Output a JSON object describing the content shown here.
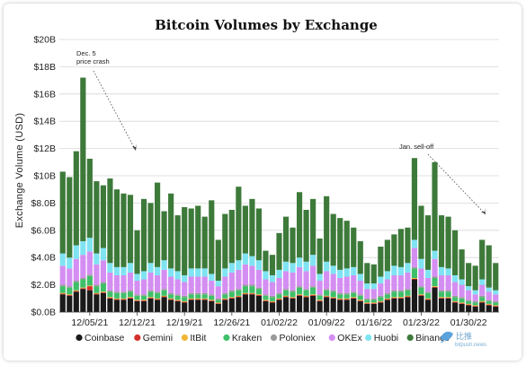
{
  "chart_data": {
    "type": "bar",
    "stacked": true,
    "title": "Bitcoin Volumes by Exchange",
    "xlabel": "",
    "ylabel": "Exchange Volume (USD)",
    "ylim": [
      0,
      20
    ],
    "y_ticks": [
      0,
      2,
      4,
      6,
      8,
      10,
      12,
      14,
      16,
      18,
      20
    ],
    "y_tick_labels": [
      "$0.0B",
      "$2.0B",
      "$4.0B",
      "$6.0B",
      "$8.0B",
      "$10B",
      "$12B",
      "$14B",
      "$16B",
      "$18B",
      "$20B"
    ],
    "x_tick_labels": [
      {
        "label": "12/05/21",
        "index": 4
      },
      {
        "label": "12/12/21",
        "index": 11
      },
      {
        "label": "12/19/21",
        "index": 18
      },
      {
        "label": "12/26/21",
        "index": 25
      },
      {
        "label": "01/02/22",
        "index": 32
      },
      {
        "label": "01/09/22",
        "index": 39
      },
      {
        "label": "01/16/22",
        "index": 46
      },
      {
        "label": "01/23/22",
        "index": 53
      },
      {
        "label": "01/30/22",
        "index": 60
      }
    ],
    "grid": true,
    "legend_position": "bottom",
    "series": [
      {
        "name": "Coinbase",
        "color": "#1a1a1a",
        "values": [
          1.3,
          1.2,
          1.5,
          1.7,
          1.6,
          1.3,
          1.4,
          1.0,
          0.9,
          0.9,
          1.0,
          0.8,
          0.8,
          1.0,
          0.9,
          1.1,
          0.9,
          0.8,
          0.7,
          0.9,
          0.9,
          0.9,
          0.8,
          0.6,
          0.9,
          1.0,
          1.1,
          1.3,
          1.3,
          1.2,
          0.8,
          0.7,
          0.9,
          1.1,
          1.0,
          1.2,
          1.1,
          1.2,
          0.8,
          1.1,
          1.0,
          0.9,
          0.9,
          1.0,
          0.8,
          0.6,
          0.6,
          0.7,
          0.9,
          1.0,
          1.0,
          1.1,
          2.4,
          1.2,
          0.9,
          1.8,
          1.0,
          1.0,
          0.7,
          0.6,
          0.5,
          0.4,
          0.7,
          0.5,
          0.4
        ]
      },
      {
        "name": "Gemini",
        "color": "#d4302b",
        "values": [
          0.05,
          0.05,
          0.05,
          0.05,
          0.3,
          0.05,
          0.05,
          0.05,
          0.05,
          0.05,
          0.05,
          0.05,
          0.05,
          0.05,
          0.05,
          0.05,
          0.05,
          0.05,
          0.05,
          0.05,
          0.05,
          0.05,
          0.05,
          0.05,
          0.05,
          0.05,
          0.05,
          0.05,
          0.05,
          0.05,
          0.05,
          0.05,
          0.05,
          0.05,
          0.05,
          0.05,
          0.05,
          0.05,
          0.05,
          0.05,
          0.05,
          0.05,
          0.05,
          0.05,
          0.05,
          0.05,
          0.05,
          0.05,
          0.05,
          0.05,
          0.05,
          0.05,
          0.05,
          0.05,
          0.05,
          0.05,
          0.05,
          0.05,
          0.05,
          0.05,
          0.05,
          0.05,
          0.05,
          0.05,
          0.05
        ]
      },
      {
        "name": "ItBit",
        "color": "#f2b632",
        "values": [
          0.05,
          0.05,
          0.05,
          0.05,
          0.05,
          0.05,
          0.05,
          0.05,
          0.05,
          0.05,
          0.05,
          0.05,
          0.05,
          0.05,
          0.05,
          0.05,
          0.05,
          0.05,
          0.05,
          0.05,
          0.05,
          0.05,
          0.05,
          0.05,
          0.05,
          0.05,
          0.05,
          0.05,
          0.05,
          0.05,
          0.05,
          0.05,
          0.05,
          0.05,
          0.05,
          0.05,
          0.05,
          0.05,
          0.05,
          0.05,
          0.05,
          0.05,
          0.05,
          0.05,
          0.05,
          0.05,
          0.05,
          0.05,
          0.05,
          0.05,
          0.05,
          0.05,
          0.05,
          0.05,
          0.05,
          0.05,
          0.05,
          0.05,
          0.05,
          0.05,
          0.05,
          0.05,
          0.05,
          0.05,
          0.05
        ]
      },
      {
        "name": "Kraken",
        "color": "#3fbf6a",
        "values": [
          0.5,
          0.5,
          0.6,
          0.6,
          0.7,
          0.5,
          0.6,
          0.4,
          0.4,
          0.4,
          0.4,
          0.3,
          0.3,
          0.4,
          0.4,
          0.4,
          0.3,
          0.3,
          0.3,
          0.3,
          0.3,
          0.3,
          0.3,
          0.2,
          0.3,
          0.4,
          0.4,
          0.5,
          0.5,
          0.4,
          0.3,
          0.3,
          0.3,
          0.4,
          0.4,
          0.5,
          0.4,
          0.5,
          0.3,
          0.4,
          0.4,
          0.3,
          0.3,
          0.3,
          0.3,
          0.2,
          0.2,
          0.3,
          0.3,
          0.4,
          0.4,
          0.4,
          0.7,
          0.5,
          0.4,
          0.6,
          0.4,
          0.4,
          0.3,
          0.3,
          0.2,
          0.2,
          0.3,
          0.2,
          0.2
        ]
      },
      {
        "name": "Poloniex",
        "color": "#9a9a9a",
        "values": [
          0.1,
          0.1,
          0.1,
          0.1,
          0.1,
          0.1,
          0.1,
          0.1,
          0.1,
          0.1,
          0.1,
          0.1,
          0.1,
          0.1,
          0.1,
          0.1,
          0.1,
          0.1,
          0.1,
          0.1,
          0.1,
          0.1,
          0.1,
          0.1,
          0.1,
          0.1,
          0.1,
          0.1,
          0.1,
          0.1,
          0.1,
          0.1,
          0.1,
          0.1,
          0.1,
          0.1,
          0.1,
          0.1,
          0.1,
          0.1,
          0.1,
          0.1,
          0.1,
          0.1,
          0.1,
          0.1,
          0.1,
          0.1,
          0.1,
          0.1,
          0.1,
          0.1,
          0.1,
          0.1,
          0.1,
          0.1,
          0.1,
          0.1,
          0.1,
          0.1,
          0.1,
          0.1,
          0.1,
          0.1,
          0.1
        ]
      },
      {
        "name": "OKEx",
        "color": "#d48ef2",
        "values": [
          1.4,
          1.3,
          1.6,
          1.7,
          1.7,
          1.5,
          1.6,
          1.3,
          1.2,
          1.2,
          1.3,
          1.0,
          1.1,
          1.3,
          1.2,
          1.4,
          1.2,
          1.1,
          1.0,
          1.2,
          1.2,
          1.2,
          1.0,
          0.9,
          1.2,
          1.3,
          1.4,
          1.5,
          1.4,
          1.3,
          1.1,
          1.0,
          1.1,
          1.3,
          1.3,
          1.4,
          1.3,
          1.5,
          1.0,
          1.3,
          1.2,
          1.1,
          1.2,
          1.2,
          1.0,
          0.7,
          0.7,
          0.9,
          1.0,
          1.1,
          1.1,
          1.2,
          1.4,
          1.3,
          1.0,
          1.3,
          1.1,
          1.1,
          1.0,
          0.9,
          0.7,
          0.5,
          0.8,
          0.6,
          0.5
        ]
      },
      {
        "name": "Huobi",
        "color": "#7fe3f2",
        "values": [
          0.9,
          0.8,
          1.0,
          1.0,
          1.0,
          0.8,
          0.9,
          0.7,
          0.6,
          0.6,
          0.7,
          0.5,
          0.6,
          0.7,
          0.6,
          0.7,
          0.6,
          0.6,
          0.5,
          0.6,
          0.6,
          0.6,
          0.5,
          0.4,
          0.6,
          0.7,
          0.7,
          0.8,
          0.7,
          0.7,
          0.6,
          0.5,
          0.6,
          0.7,
          0.7,
          0.7,
          0.7,
          0.8,
          0.5,
          0.7,
          0.6,
          0.6,
          0.6,
          0.6,
          0.5,
          0.4,
          0.4,
          0.5,
          0.6,
          0.7,
          0.6,
          0.7,
          0.6,
          0.7,
          0.6,
          0.6,
          0.6,
          0.5,
          0.5,
          0.4,
          0.3,
          0.3,
          0.4,
          0.3,
          0.3
        ]
      },
      {
        "name": "Binance",
        "color": "#3d7a3a",
        "values": [
          6.0,
          5.9,
          6.9,
          12.0,
          5.8,
          5.3,
          4.6,
          6.2,
          5.7,
          5.4,
          5.0,
          3.2,
          5.3,
          4.4,
          6.2,
          3.6,
          5.5,
          4.1,
          5.0,
          4.4,
          4.6,
          3.8,
          5.4,
          3.0,
          4.0,
          3.9,
          5.4,
          3.5,
          4.2,
          3.8,
          1.5,
          1.5,
          2.7,
          3.3,
          2.6,
          4.8,
          3.8,
          4.1,
          2.6,
          4.8,
          3.8,
          3.8,
          3.5,
          2.9,
          2.4,
          1.5,
          1.4,
          2.2,
          2.3,
          2.3,
          2.8,
          2.6,
          6.0,
          3.9,
          4.0,
          6.5,
          3.8,
          3.8,
          3.3,
          2.2,
          1.7,
          1.8,
          2.9,
          3.1,
          2.0
        ]
      }
    ],
    "annotations": [
      {
        "text": [
          "Dec. 5",
          "price crash"
        ],
        "bar_index": 5
      },
      {
        "text": [
          "Jan. sell-off"
        ],
        "bar_index": 58
      }
    ]
  },
  "watermark": {
    "text": "比推",
    "subtext": "bitpush.news"
  }
}
